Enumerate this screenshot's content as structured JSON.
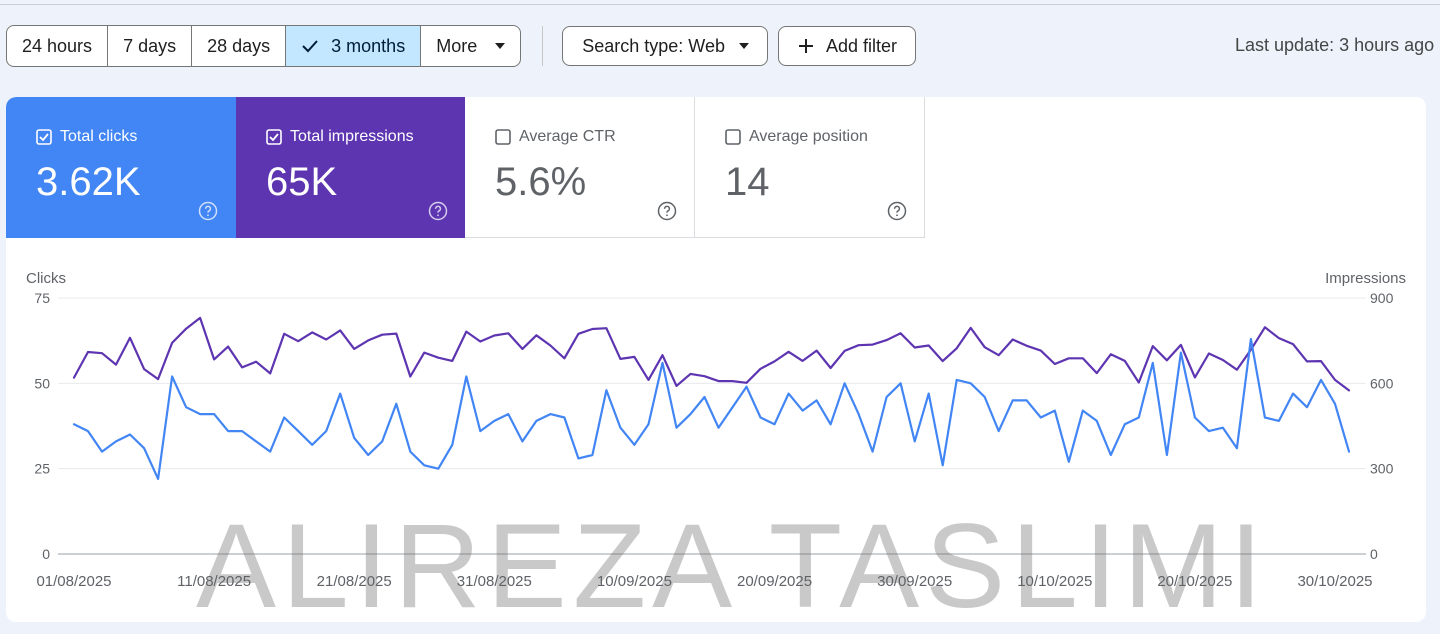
{
  "toolbar": {
    "ranges": [
      {
        "label": "24 hours",
        "active": false
      },
      {
        "label": "7 days",
        "active": false
      },
      {
        "label": "28 days",
        "active": false
      },
      {
        "label": "3 months",
        "active": true
      },
      {
        "label": "More",
        "active": false
      }
    ],
    "search_type": "Search type: Web",
    "add_filter": "Add filter",
    "last_update": "Last update: 3 hours ago"
  },
  "metrics": [
    {
      "label": "Total clicks",
      "value": "3.62K",
      "checked": true,
      "color": "#4285f4"
    },
    {
      "label": "Total impressions",
      "value": "65K",
      "checked": true,
      "color": "#5e35b1"
    },
    {
      "label": "Average CTR",
      "value": "5.6%",
      "checked": false
    },
    {
      "label": "Average position",
      "value": "14",
      "checked": false
    }
  ],
  "watermark": "ALIREZA TASLIMI",
  "chart_data": {
    "type": "line",
    "left_axis": {
      "title": "Clicks",
      "ticks": [
        0,
        25,
        50,
        75
      ],
      "range": [
        0,
        75
      ]
    },
    "right_axis": {
      "title": "Impressions",
      "ticks": [
        0,
        300,
        600,
        900
      ],
      "range": [
        0,
        900
      ]
    },
    "x_tick_labels": [
      "01/08/2025",
      "11/08/2025",
      "21/08/2025",
      "31/08/2025",
      "10/09/2025",
      "20/09/2025",
      "30/09/2025",
      "10/10/2025",
      "20/10/2025",
      "30/10/2025"
    ],
    "days": 92,
    "series": [
      {
        "name": "Clicks",
        "axis": "left",
        "color": "#4285f4",
        "values": [
          38,
          36,
          30,
          33,
          35,
          31,
          22,
          52,
          43,
          41,
          41,
          36,
          36,
          33,
          30,
          40,
          36,
          32,
          36,
          47,
          34,
          29,
          33,
          44,
          30,
          26,
          25,
          32,
          52,
          36,
          39,
          41,
          33,
          39,
          41,
          40,
          28,
          29,
          48,
          37,
          32,
          38,
          56,
          37,
          41,
          46,
          37,
          43,
          49,
          40,
          38,
          47,
          42,
          45,
          38,
          50,
          41,
          30,
          46,
          50,
          33,
          47,
          26,
          51,
          50,
          46,
          36,
          45,
          45,
          40,
          42,
          27,
          42,
          39,
          29,
          38,
          40,
          56,
          29,
          59,
          40,
          36,
          37,
          31,
          63,
          40,
          39,
          47,
          43,
          51,
          44,
          30
        ]
      },
      {
        "name": "Impressions",
        "axis": "right",
        "color": "#5e35b1",
        "values": [
          620,
          710,
          706,
          666,
          760,
          650,
          615,
          742,
          792,
          830,
          684,
          729,
          656,
          676,
          635,
          774,
          748,
          779,
          754,
          786,
          721,
          751,
          771,
          775,
          624,
          708,
          690,
          679,
          782,
          747,
          768,
          776,
          721,
          769,
          733,
          688,
          774,
          791,
          794,
          686,
          693,
          612,
          699,
          591,
          633,
          625,
          608,
          608,
          602,
          651,
          677,
          711,
          679,
          715,
          654,
          714,
          734,
          736,
          752,
          776,
          726,
          733,
          678,
          723,
          795,
          727,
          699,
          754,
          732,
          715,
          668,
          688,
          688,
          636,
          702,
          679,
          603,
          731,
          681,
          735,
          621,
          705,
          682,
          648,
          718,
          797,
          759,
          738,
          677,
          678,
          612,
          575
        ]
      }
    ]
  }
}
